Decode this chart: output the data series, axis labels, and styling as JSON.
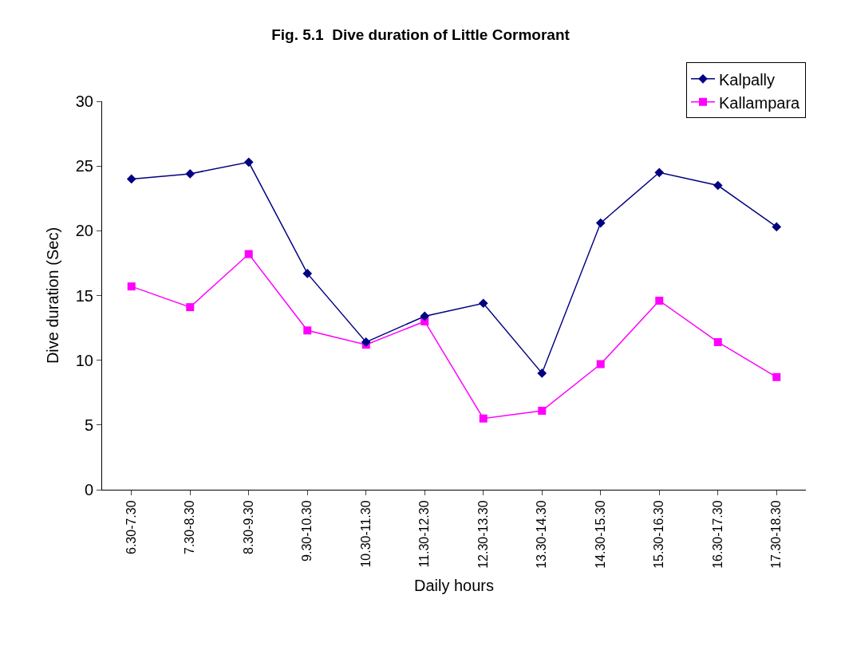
{
  "chart_data": {
    "type": "line",
    "title": "Fig. 5.1  Dive duration of Little Cormorant",
    "xlabel": "Daily hours",
    "ylabel": "Dive duration (Sec)",
    "categories": [
      "6.30-7.30",
      "7.30-8.30",
      "8.30-9.30",
      "9.30-10.30",
      "10.30-11.30",
      "11.30-12.30",
      "12.30-13.30",
      "13.30-14.30",
      "14.30-15.30",
      "15.30-16.30",
      "16.30-17.30",
      "17.30-18.30"
    ],
    "series": [
      {
        "name": "Kalpally",
        "color": "#000080",
        "marker": "diamond",
        "values": [
          24.0,
          24.4,
          25.3,
          16.7,
          11.4,
          13.4,
          14.4,
          9.0,
          20.6,
          24.5,
          23.5,
          20.3
        ]
      },
      {
        "name": "Kallampara",
        "color": "#ff00ff",
        "marker": "square",
        "values": [
          15.7,
          14.1,
          18.2,
          12.3,
          11.2,
          13.0,
          5.5,
          6.1,
          9.7,
          14.6,
          11.4,
          8.7
        ]
      }
    ],
    "ylim": [
      0,
      30
    ],
    "yticks": [
      0,
      5,
      10,
      15,
      20,
      25,
      30
    ],
    "grid": false,
    "legend": "top right",
    "line_style": "solid"
  }
}
